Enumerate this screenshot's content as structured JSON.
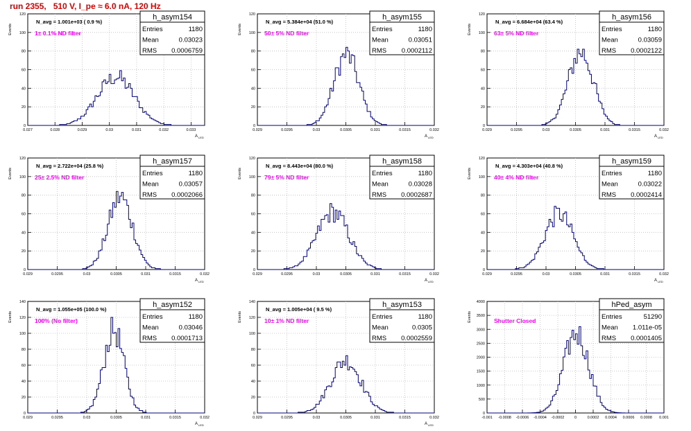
{
  "header": {
    "title": "run 2355,   510 V, I_pe ≈ 6.0 nA, 120 Hz"
  },
  "chart_data": [
    {
      "type": "histogram",
      "name": "h_asym154",
      "navg_label": "N_avg = 1.001e+03 ( 0.9 %)",
      "annotation": "1± 0.1% ND filter",
      "stats": {
        "Entries": "1180",
        "Mean": "0.03023",
        "RMS": "0.0006759"
      },
      "xlim": [
        0.027,
        0.0335
      ],
      "ylim": [
        0,
        120
      ],
      "xticks": [
        "0.027",
        "0.028",
        "0.029",
        "0.03",
        "0.031",
        "0.032",
        "0.033"
      ],
      "yticks": [
        "0",
        "20",
        "40",
        "60",
        "80",
        "100",
        "120"
      ],
      "xlabel": "A_LED",
      "ylabel": "Events",
      "hist_mean": 0.03023,
      "hist_rms": 0.0006759,
      "hist_peak": 52
    },
    {
      "type": "histogram",
      "name": "h_asym155",
      "navg_label": "N_avg = 5.384e+04 (51.0 %)",
      "annotation": "50± 5% ND filter",
      "stats": {
        "Entries": "1180",
        "Mean": "0.03051",
        "RMS": "0.0002112"
      },
      "xlim": [
        0.029,
        0.032
      ],
      "ylim": [
        0,
        120
      ],
      "xticks": [
        "0.029",
        "0.0295",
        "0.03",
        "0.0305",
        "0.031",
        "0.0315",
        "0.032"
      ],
      "yticks": [
        "0",
        "20",
        "40",
        "60",
        "80",
        "100",
        "120"
      ],
      "xlabel": "A_LED",
      "ylabel": "Events",
      "hist_mean": 0.03051,
      "hist_rms": 0.0002112,
      "hist_peak": 76
    },
    {
      "type": "histogram",
      "name": "h_asym156",
      "navg_label": "N_avg = 6.684e+04 (63.4 %)",
      "annotation": "63± 5% ND filter",
      "stats": {
        "Entries": "1180",
        "Mean": "0.03059",
        "RMS": "0.0002122"
      },
      "xlim": [
        0.029,
        0.032
      ],
      "ylim": [
        0,
        120
      ],
      "xticks": [
        "0.029",
        "0.0295",
        "0.03",
        "0.0305",
        "0.031",
        "0.0315",
        "0.032"
      ],
      "yticks": [
        "0",
        "20",
        "40",
        "60",
        "80",
        "100",
        "120"
      ],
      "xlabel": "A_LED",
      "ylabel": "Events",
      "hist_mean": 0.03059,
      "hist_rms": 0.0002122,
      "hist_peak": 79
    },
    {
      "type": "histogram",
      "name": "h_asym157",
      "navg_label": "N_avg = 2.722e+04 (25.8 %)",
      "annotation": "25± 2.5% ND filter",
      "stats": {
        "Entries": "1180",
        "Mean": "0.03057",
        "RMS": "0.0002066"
      },
      "xlim": [
        0.029,
        0.032
      ],
      "ylim": [
        0,
        120
      ],
      "xticks": [
        "0.029",
        "0.0295",
        "0.03",
        "0.0305",
        "0.031",
        "0.0315",
        "0.032"
      ],
      "yticks": [
        "0",
        "20",
        "40",
        "60",
        "80",
        "100",
        "120"
      ],
      "xlabel": "A_LED",
      "ylabel": "Events",
      "hist_mean": 0.03057,
      "hist_rms": 0.0002066,
      "hist_peak": 78
    },
    {
      "type": "histogram",
      "name": "h_asym158",
      "navg_label": "N_avg = 8.443e+04 (80.0 %)",
      "annotation": "79± 5% ND filter",
      "stats": {
        "Entries": "1180",
        "Mean": "0.03028",
        "RMS": "0.0002687"
      },
      "xlim": [
        0.029,
        0.032
      ],
      "ylim": [
        0,
        120
      ],
      "xticks": [
        "0.029",
        "0.0295",
        "0.03",
        "0.0305",
        "0.031",
        "0.0315",
        "0.032"
      ],
      "yticks": [
        "0",
        "20",
        "40",
        "60",
        "80",
        "100",
        "120"
      ],
      "xlabel": "A_LED",
      "ylabel": "Events",
      "hist_mean": 0.03028,
      "hist_rms": 0.0002687,
      "hist_peak": 62
    },
    {
      "type": "histogram",
      "name": "h_asym159",
      "navg_label": "N_avg = 4.303e+04 (40.8 %)",
      "annotation": "40± 4% ND filter",
      "stats": {
        "Entries": "1180",
        "Mean": "0.03022",
        "RMS": "0.0002414"
      },
      "xlim": [
        0.029,
        0.032
      ],
      "ylim": [
        0,
        120
      ],
      "xticks": [
        "0.029",
        "0.0295",
        "0.03",
        "0.0305",
        "0.031",
        "0.0315",
        "0.032"
      ],
      "yticks": [
        "0",
        "20",
        "40",
        "60",
        "80",
        "100",
        "120"
      ],
      "xlabel": "A_LED",
      "ylabel": "Events",
      "hist_mean": 0.03022,
      "hist_rms": 0.0002414,
      "hist_peak": 60
    },
    {
      "type": "histogram",
      "name": "h_asym152",
      "navg_label": "N_avg = 1.055e+05 (100.0 %)",
      "annotation": "100% (No filter)",
      "stats": {
        "Entries": "1180",
        "Mean": "0.03046",
        "RMS": "0.0001713"
      },
      "xlim": [
        0.029,
        0.032
      ],
      "ylim": [
        0,
        140
      ],
      "xticks": [
        "0.029",
        "0.0295",
        "0.03",
        "0.0305",
        "0.031",
        "0.0315",
        "0.032"
      ],
      "yticks": [
        "0",
        "20",
        "40",
        "60",
        "80",
        "100",
        "120",
        "140"
      ],
      "xlabel": "A_LED",
      "ylabel": "Events",
      "hist_mean": 0.03046,
      "hist_rms": 0.0001713,
      "hist_peak": 104
    },
    {
      "type": "histogram",
      "name": "h_asym153",
      "navg_label": "N_avg = 1.005e+04 ( 9.5 %)",
      "annotation": "10± 1% ND filter",
      "stats": {
        "Entries": "1180",
        "Mean": "0.0305",
        "RMS": "0.0002559"
      },
      "xlim": [
        0.029,
        0.032
      ],
      "ylim": [
        0,
        140
      ],
      "xticks": [
        "0.029",
        "0.0295",
        "0.03",
        "0.0305",
        "0.031",
        "0.0315",
        "0.032"
      ],
      "yticks": [
        "0",
        "20",
        "40",
        "60",
        "80",
        "100",
        "120",
        "140"
      ],
      "xlabel": "A_LED",
      "ylabel": "Events",
      "hist_mean": 0.0305,
      "hist_rms": 0.0002559,
      "hist_peak": 66
    },
    {
      "type": "histogram",
      "name": "hPed_asym",
      "navg_label": "",
      "annotation": "Shutter Closed",
      "stats": {
        "Entries": "51290",
        "Mean": "1.011e-05",
        "RMS": "0.0001405"
      },
      "xlim": [
        -0.001,
        0.001
      ],
      "ylim": [
        0,
        4000
      ],
      "xticks": [
        "-0.001",
        "-0.0008",
        "-0.0006",
        "-0.0004",
        "-0.0002",
        "0",
        "0.0002",
        "0.0004",
        "0.0006",
        "0.0008",
        "0.001"
      ],
      "yticks": [
        "0",
        "500",
        "1000",
        "1500",
        "2000",
        "2500",
        "3000",
        "3500",
        "4000"
      ],
      "xlabel": "",
      "ylabel": "Events",
      "hist_mean": 1.011e-05,
      "hist_rms": 0.0001405,
      "hist_peak": 2870
    }
  ],
  "colors": {
    "title": "#e00000",
    "annotation": "#ff00ff",
    "histogram": "#00007a",
    "frame": "#000000",
    "grid": "#bbbbbb"
  }
}
